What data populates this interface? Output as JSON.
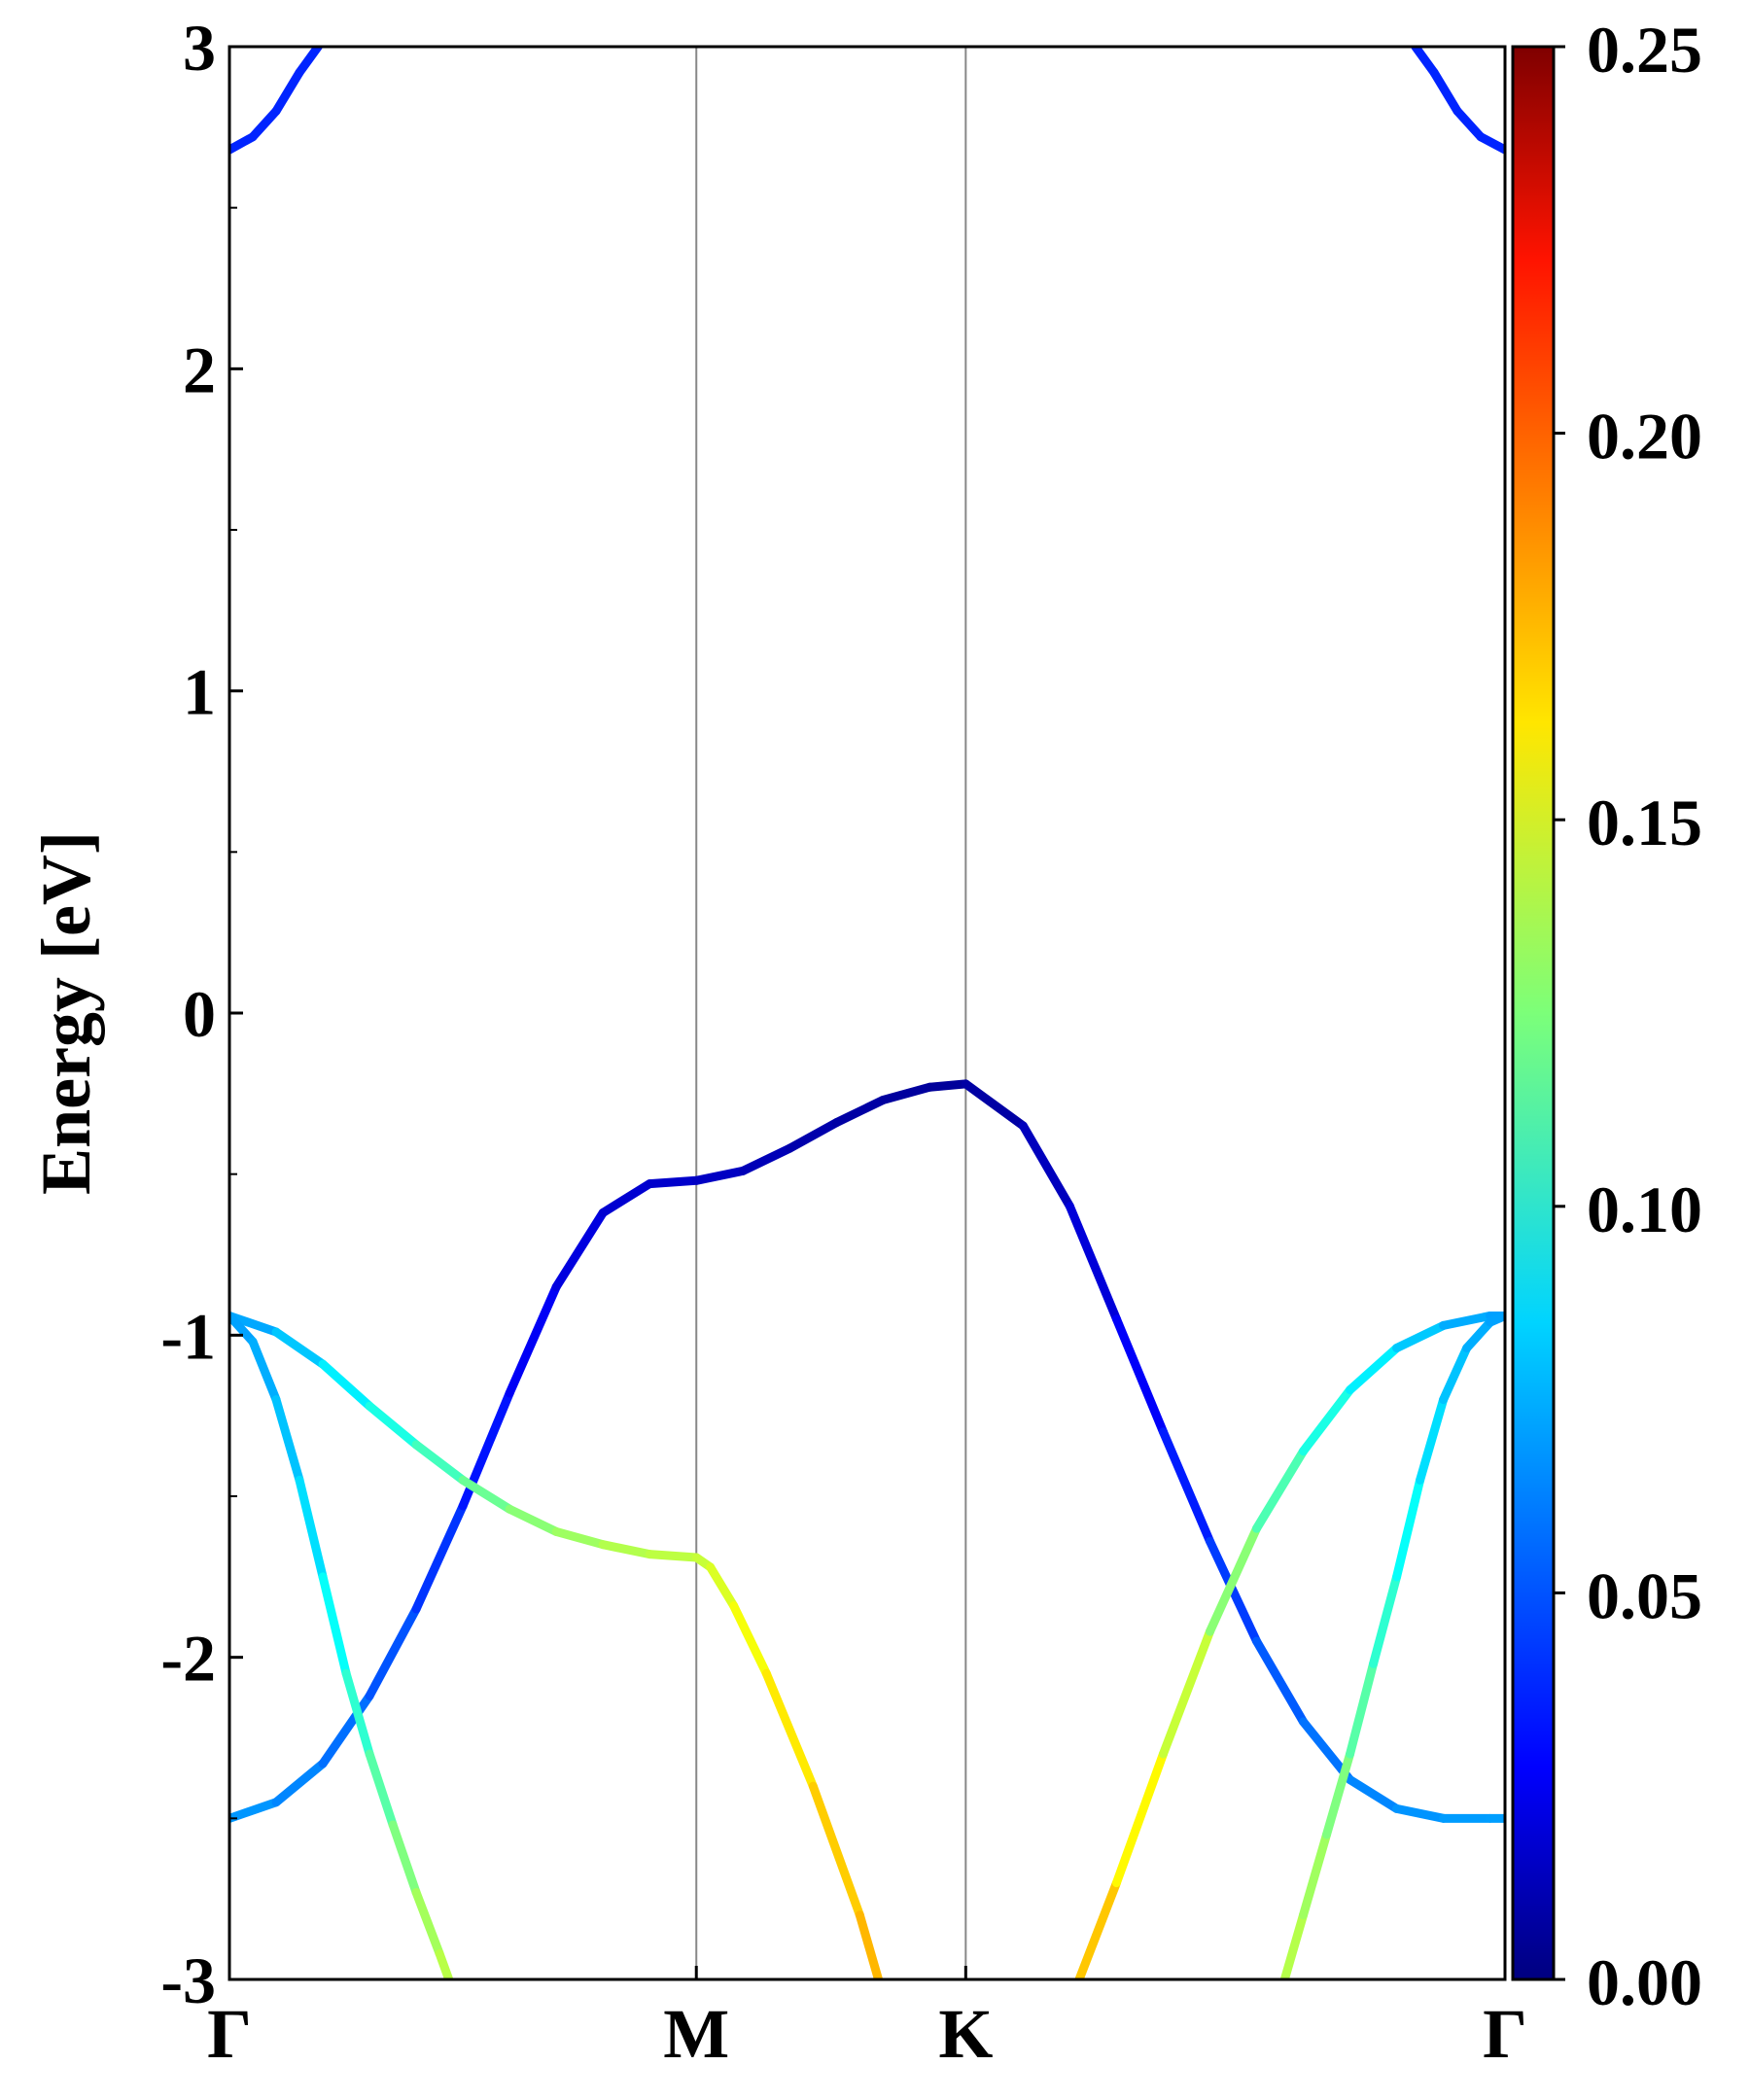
{
  "chart_data": {
    "type": "line",
    "title": "",
    "ylabel": "Energy [eV]",
    "xlabel": "",
    "ylim": [
      -3,
      3
    ],
    "yticks": [
      "-3",
      "-2",
      "-1",
      "0",
      "1",
      "2",
      "3"
    ],
    "kpath": [
      {
        "label": "Γ",
        "x": 0
      },
      {
        "label": "M",
        "x": 1.0
      },
      {
        "label": "K",
        "x": 1.577
      },
      {
        "label": "Γ",
        "x": 2.732
      }
    ],
    "colorbar": {
      "colormap": "jet",
      "range": [
        0.0,
        0.25
      ],
      "tick_labels": [
        "0.00",
        "0.05",
        "0.10",
        "0.15",
        "0.20",
        "0.25"
      ],
      "tick_values": [
        0.0,
        0.05,
        0.1,
        0.15,
        0.2,
        0.25
      ]
    },
    "bands": [
      {
        "x": [
          0,
          0.05,
          0.1,
          0.15,
          0.19
        ],
        "y": [
          2.68,
          2.72,
          2.8,
          2.92,
          3.0
        ],
        "weight": [
          0.04,
          0.04,
          0.04,
          0.04,
          0.04
        ]
      },
      {
        "x": [
          2.54,
          2.58,
          2.63,
          2.68,
          2.732
        ],
        "y": [
          3.0,
          2.92,
          2.8,
          2.72,
          2.68
        ],
        "weight": [
          0.04,
          0.04,
          0.04,
          0.04,
          0.04
        ]
      },
      {
        "x": [
          0,
          0.1,
          0.2,
          0.3,
          0.4,
          0.5,
          0.6,
          0.7,
          0.8,
          0.9,
          1.0,
          1.1,
          1.2,
          1.3,
          1.4,
          1.5,
          1.577,
          1.7,
          1.8,
          1.9,
          2.0,
          2.1,
          2.2,
          2.3,
          2.4,
          2.5,
          2.6,
          2.7,
          2.732
        ],
        "y": [
          -2.5,
          -2.45,
          -2.33,
          -2.12,
          -1.85,
          -1.53,
          -1.18,
          -0.85,
          -0.62,
          -0.53,
          -0.52,
          -0.49,
          -0.42,
          -0.34,
          -0.27,
          -0.23,
          -0.22,
          -0.35,
          -0.6,
          -0.95,
          -1.3,
          -1.64,
          -1.95,
          -2.2,
          -2.38,
          -2.47,
          -2.5,
          -2.5,
          -2.5
        ],
        "weight": [
          0.07,
          0.066,
          0.062,
          0.055,
          0.048,
          0.04,
          0.032,
          0.026,
          0.021,
          0.019,
          0.018,
          0.015,
          0.012,
          0.01,
          0.008,
          0.007,
          0.006,
          0.012,
          0.018,
          0.026,
          0.034,
          0.042,
          0.05,
          0.057,
          0.062,
          0.066,
          0.069,
          0.07,
          0.07
        ]
      },
      {
        "x": [
          0,
          0.1,
          0.2,
          0.3,
          0.4,
          0.5,
          0.6,
          0.7,
          0.8,
          0.9,
          1.0,
          1.03,
          1.08,
          1.15,
          1.25,
          1.35,
          1.39
        ],
        "y": [
          -0.94,
          -0.99,
          -1.09,
          -1.22,
          -1.34,
          -1.45,
          -1.54,
          -1.61,
          -1.65,
          -1.68,
          -1.69,
          -1.72,
          -1.84,
          -2.05,
          -2.4,
          -2.8,
          -3.0
        ],
        "weight": [
          0.07,
          0.075,
          0.085,
          0.095,
          0.105,
          0.115,
          0.125,
          0.13,
          0.135,
          0.14,
          0.14,
          0.145,
          0.15,
          0.158,
          0.165,
          0.172,
          0.176
        ]
      },
      {
        "x": [
          0,
          0.05,
          0.1,
          0.15,
          0.2,
          0.25,
          0.3,
          0.35,
          0.4,
          0.45,
          0.47
        ],
        "y": [
          -0.94,
          -1.02,
          -1.2,
          -1.45,
          -1.75,
          -2.05,
          -2.3,
          -2.52,
          -2.73,
          -2.92,
          -3.0
        ],
        "weight": [
          0.07,
          0.072,
          0.076,
          0.082,
          0.09,
          0.1,
          0.11,
          0.12,
          0.13,
          0.138,
          0.14
        ]
      },
      {
        "x": [
          1.82,
          1.9,
          2.0,
          2.1,
          2.2,
          2.3,
          2.4,
          2.5,
          2.6,
          2.7,
          2.732
        ],
        "y": [
          -3.0,
          -2.7,
          -2.3,
          -1.92,
          -1.6,
          -1.36,
          -1.17,
          -1.04,
          -0.97,
          -0.94,
          -0.94
        ],
        "weight": [
          0.175,
          0.165,
          0.15,
          0.135,
          0.12,
          0.105,
          0.095,
          0.085,
          0.076,
          0.071,
          0.07
        ]
      },
      {
        "x": [
          2.26,
          2.3,
          2.35,
          2.4,
          2.45,
          2.5,
          2.55,
          2.6,
          2.65,
          2.7,
          2.732
        ],
        "y": [
          -3.0,
          -2.8,
          -2.55,
          -2.3,
          -2.02,
          -1.75,
          -1.45,
          -1.2,
          -1.04,
          -0.96,
          -0.94
        ],
        "weight": [
          0.14,
          0.136,
          0.13,
          0.12,
          0.11,
          0.1,
          0.09,
          0.082,
          0.076,
          0.072,
          0.07
        ]
      }
    ]
  }
}
